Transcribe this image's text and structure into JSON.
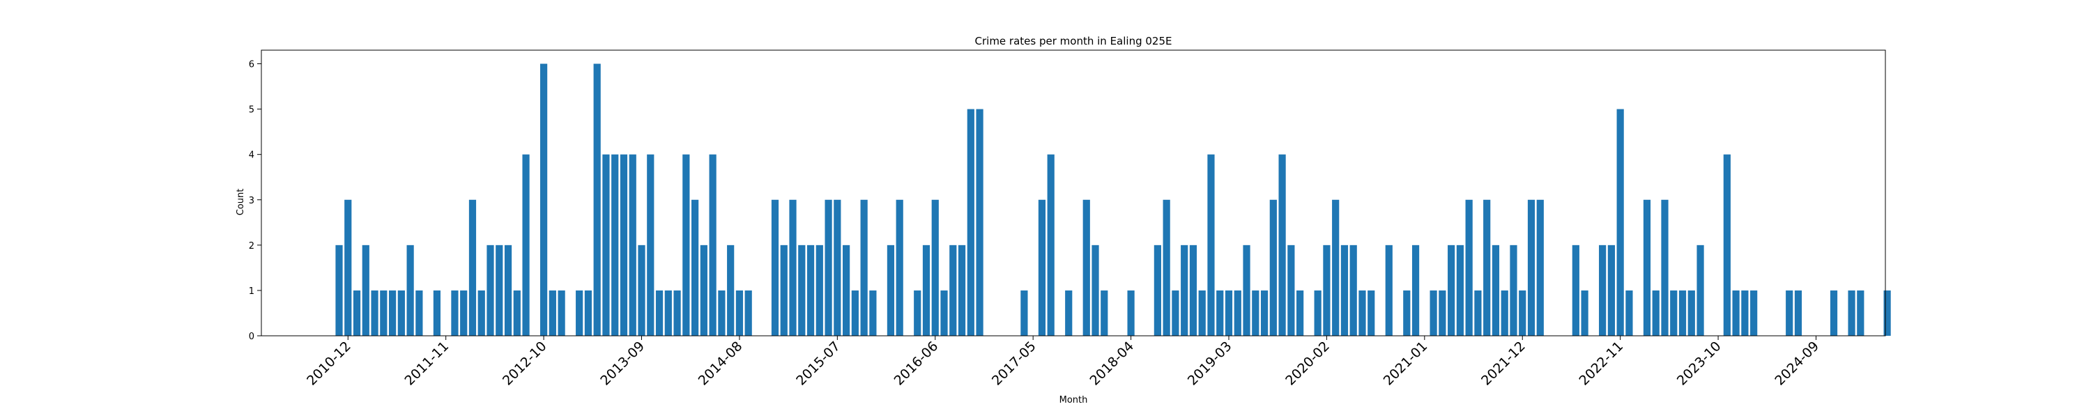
{
  "chart_data": {
    "type": "bar",
    "title": "Crime rates per month in Ealing 025E",
    "xlabel": "Month",
    "ylabel": "Count",
    "ylim": [
      0,
      6.3
    ],
    "yticks": [
      0,
      1,
      2,
      3,
      4,
      5,
      6
    ],
    "xtick_labels": [
      "2010-12",
      "2011-11",
      "2012-10",
      "2013-09",
      "2014-08",
      "2015-07",
      "2016-06",
      "2017-05",
      "2018-04",
      "2019-03",
      "2020-02",
      "2021-01",
      "2021-12",
      "2022-11",
      "2023-10",
      "2024-09"
    ],
    "grid": false,
    "bar_color": "#1f77b4",
    "values": [
      2,
      3,
      1,
      2,
      1,
      1,
      1,
      1,
      2,
      1,
      0,
      1,
      0,
      1,
      1,
      3,
      1,
      2,
      2,
      2,
      1,
      4,
      0,
      6,
      1,
      1,
      0,
      1,
      1,
      6,
      4,
      4,
      4,
      4,
      2,
      4,
      1,
      1,
      1,
      4,
      3,
      2,
      4,
      1,
      2,
      1,
      1,
      0,
      0,
      3,
      2,
      3,
      2,
      2,
      2,
      3,
      3,
      2,
      1,
      3,
      1,
      0,
      2,
      3,
      0,
      1,
      2,
      3,
      1,
      2,
      2,
      5,
      5,
      0,
      0,
      0,
      0,
      1,
      0,
      3,
      4,
      0,
      1,
      0,
      3,
      2,
      1,
      0,
      0,
      1,
      0,
      0,
      2,
      3,
      1,
      2,
      2,
      1,
      4,
      1,
      1,
      1,
      2,
      1,
      1,
      3,
      4,
      2,
      1,
      0,
      1,
      2,
      3,
      2,
      2,
      1,
      1,
      0,
      2,
      0,
      1,
      2,
      0,
      1,
      1,
      2,
      2,
      3,
      1,
      3,
      2,
      1,
      2,
      1,
      3,
      3,
      0,
      0,
      0,
      2,
      1,
      0,
      2,
      2,
      5,
      1,
      0,
      3,
      1,
      3,
      1,
      1,
      1,
      2,
      0,
      0,
      4,
      1,
      1,
      1,
      0,
      0,
      0,
      1,
      1,
      0,
      0,
      0,
      1,
      0,
      1,
      1,
      0,
      0,
      1
    ]
  }
}
